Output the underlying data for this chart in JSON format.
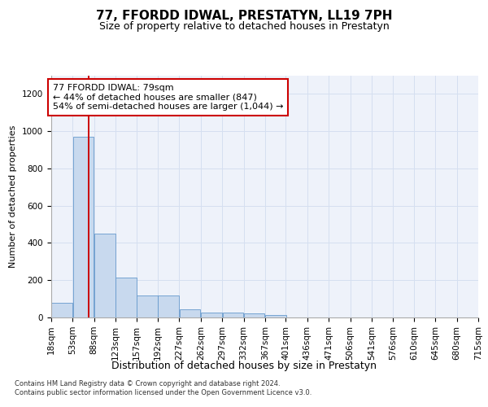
{
  "title": "77, FFORDD IDWAL, PRESTATYN, LL19 7PH",
  "subtitle": "Size of property relative to detached houses in Prestatyn",
  "xlabel": "Distribution of detached houses by size in Prestatyn",
  "ylabel": "Number of detached properties",
  "bar_color": "#c8d9ee",
  "bar_edge_color": "#6699cc",
  "grid_color": "#d5dff0",
  "background_color": "#eef2fa",
  "property_line_x": 79,
  "property_line_color": "#cc0000",
  "annotation_text": "77 FFORDD IDWAL: 79sqm\n← 44% of detached houses are smaller (847)\n54% of semi-detached houses are larger (1,044) →",
  "annotation_box_color": "#ffffff",
  "annotation_box_edge": "#cc0000",
  "footer_text": "Contains HM Land Registry data © Crown copyright and database right 2024.\nContains public sector information licensed under the Open Government Licence v3.0.",
  "bin_edges": [
    18,
    53,
    88,
    123,
    157,
    192,
    227,
    262,
    297,
    332,
    367,
    401,
    436,
    471,
    506,
    541,
    576,
    610,
    645,
    680,
    715
  ],
  "bin_labels": [
    "18sqm",
    "53sqm",
    "88sqm",
    "123sqm",
    "157sqm",
    "192sqm",
    "227sqm",
    "262sqm",
    "297sqm",
    "332sqm",
    "367sqm",
    "401sqm",
    "436sqm",
    "471sqm",
    "506sqm",
    "541sqm",
    "576sqm",
    "610sqm",
    "645sqm",
    "680sqm",
    "715sqm"
  ],
  "bar_heights": [
    80,
    970,
    450,
    215,
    120,
    120,
    45,
    25,
    25,
    20,
    13,
    0,
    0,
    0,
    0,
    0,
    0,
    0,
    0,
    0
  ],
  "ylim": [
    0,
    1300
  ],
  "yticks": [
    0,
    200,
    400,
    600,
    800,
    1000,
    1200
  ],
  "title_fontsize": 11,
  "subtitle_fontsize": 9,
  "ylabel_fontsize": 8,
  "tick_fontsize": 7.5,
  "annotation_fontsize": 8,
  "footer_fontsize": 6
}
